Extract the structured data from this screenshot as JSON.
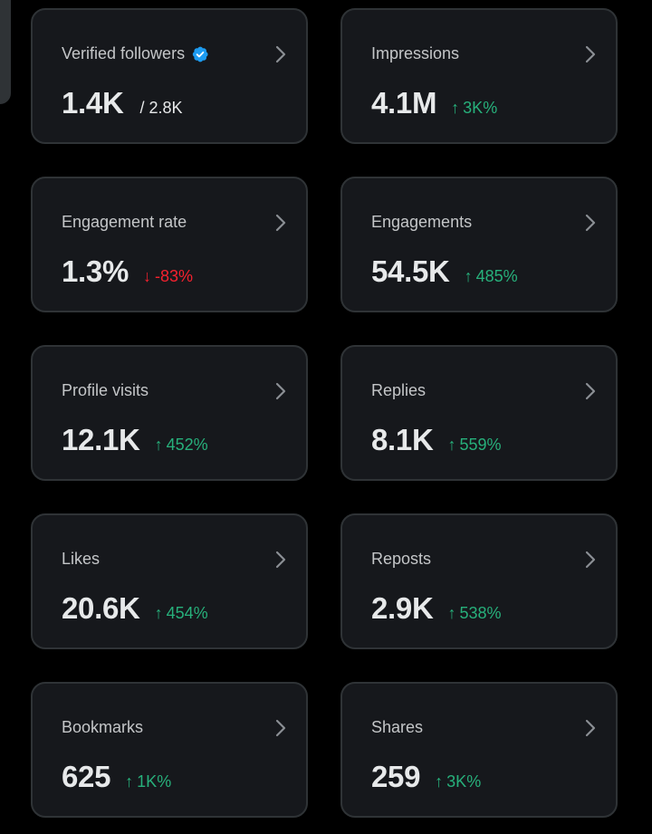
{
  "colors": {
    "background": "#000000",
    "card_background": "#16181c",
    "card_border": "#2f3336",
    "label": "#c4c6c8",
    "value": "#e7e9ea",
    "positive": "#27b07b",
    "negative": "#f4212e",
    "verified_badge": "#1d9bf0"
  },
  "cards": [
    {
      "label": "Verified followers",
      "value": "1.4K",
      "total": "/ 2.8K",
      "icon": "verified-badge-icon"
    },
    {
      "label": "Impressions",
      "value": "4.1M",
      "change": "3K%",
      "arrow": "↑",
      "direction": "up"
    },
    {
      "label": "Engagement rate",
      "value": "1.3%",
      "change": "-83%",
      "arrow": "↓",
      "direction": "down"
    },
    {
      "label": "Engagements",
      "value": "54.5K",
      "change": "485%",
      "arrow": "↑",
      "direction": "up"
    },
    {
      "label": "Profile visits",
      "value": "12.1K",
      "change": "452%",
      "arrow": "↑",
      "direction": "up"
    },
    {
      "label": "Replies",
      "value": "8.1K",
      "change": "559%",
      "arrow": "↑",
      "direction": "up"
    },
    {
      "label": "Likes",
      "value": "20.6K",
      "change": "454%",
      "arrow": "↑",
      "direction": "up"
    },
    {
      "label": "Reposts",
      "value": "2.9K",
      "change": "538%",
      "arrow": "↑",
      "direction": "up"
    },
    {
      "label": "Bookmarks",
      "value": "625",
      "change": "1K%",
      "arrow": "↑",
      "direction": "up"
    },
    {
      "label": "Shares",
      "value": "259",
      "change": "3K%",
      "arrow": "↑",
      "direction": "up"
    }
  ]
}
